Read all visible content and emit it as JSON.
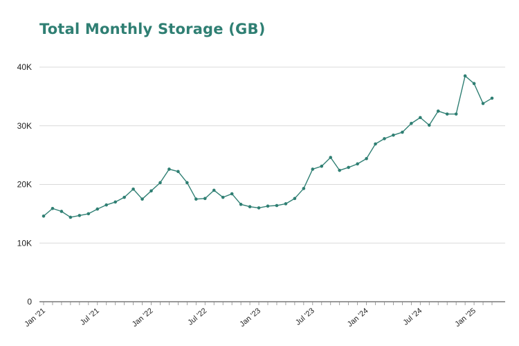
{
  "chart_data": {
    "type": "line",
    "title": "Total Monthly Storage (GB)",
    "xlabel": "",
    "ylabel": "",
    "ylim": [
      0,
      40000
    ],
    "yticks": [
      {
        "value": 0,
        "label": "0"
      },
      {
        "value": 10000,
        "label": "10K"
      },
      {
        "value": 20000,
        "label": "20K"
      },
      {
        "value": 30000,
        "label": "30K"
      },
      {
        "value": 40000,
        "label": "40K"
      }
    ],
    "xticks": [
      {
        "index": 0,
        "label": "Jan '21"
      },
      {
        "index": 6,
        "label": "Jul '21"
      },
      {
        "index": 12,
        "label": "Jan '22"
      },
      {
        "index": 18,
        "label": "Jul '22"
      },
      {
        "index": 24,
        "label": "Jan '23"
      },
      {
        "index": 30,
        "label": "Jul '23"
      },
      {
        "index": 36,
        "label": "Jan '24"
      },
      {
        "index": 42,
        "label": "Jul '24"
      },
      {
        "index": 48,
        "label": "Jan '25"
      }
    ],
    "grid": true,
    "color": "#2f7f73",
    "series": [
      {
        "values": [
          14600,
          15900,
          15400,
          14400,
          14700,
          15000,
          15800,
          16500,
          17000,
          17800,
          19200,
          17500,
          18900,
          20300,
          22600,
          22200,
          20300,
          17500,
          17600,
          19000,
          17800,
          18400,
          16600,
          16200,
          16000,
          16300,
          16400,
          16700,
          17600,
          19300,
          22600,
          23100,
          24600,
          22400,
          22900,
          23500,
          24400,
          26900,
          27800,
          28400,
          28900,
          30400,
          31400,
          30100,
          32500,
          32000,
          32000,
          38500,
          37200,
          33800,
          34700
        ]
      }
    ]
  }
}
